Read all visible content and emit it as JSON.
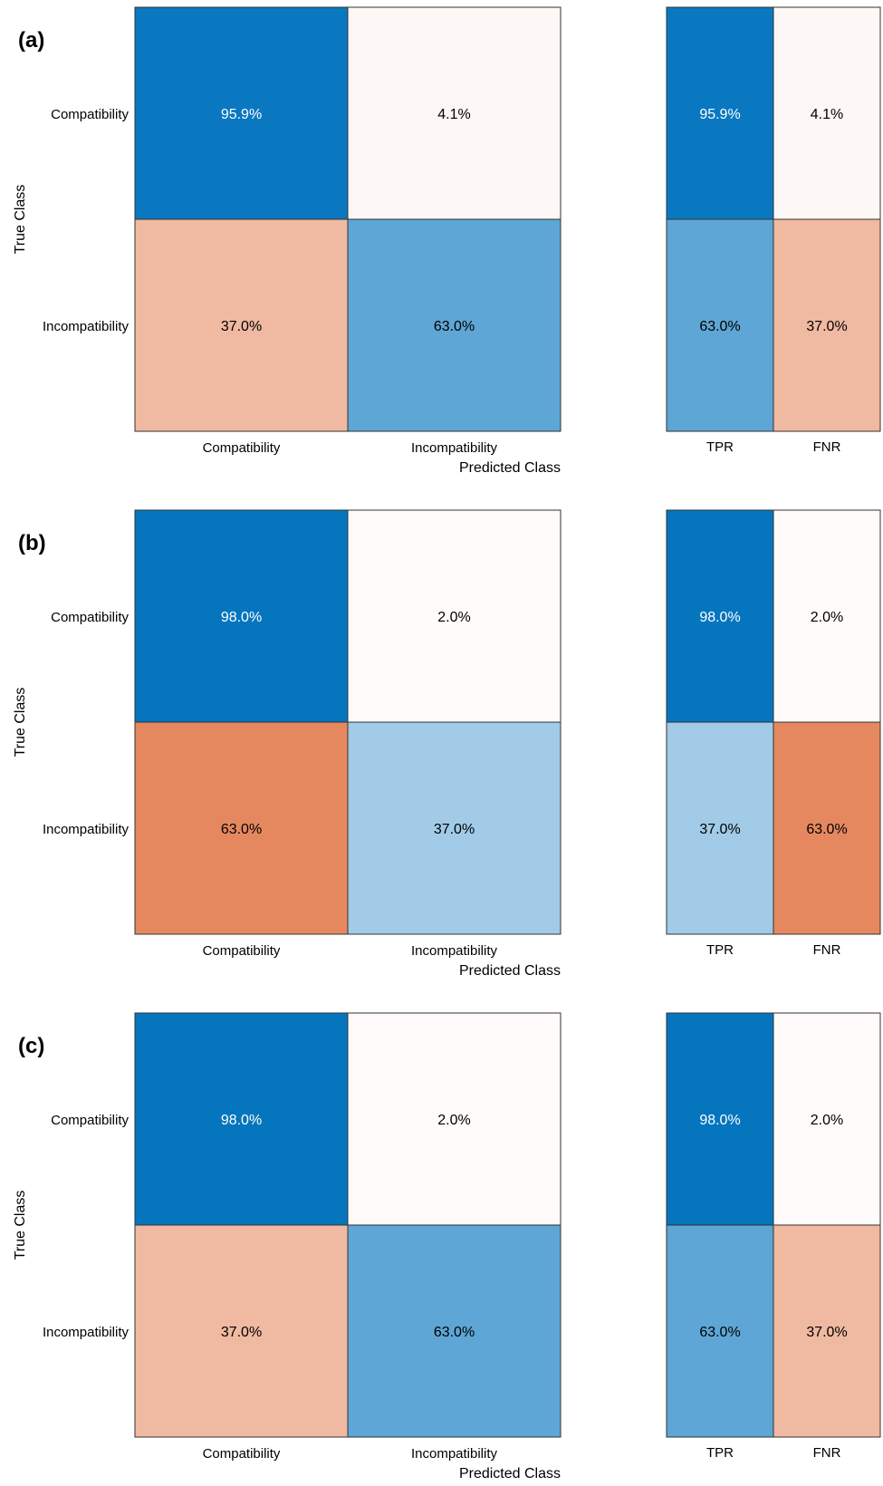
{
  "chart_data": [
    {
      "type": "heatmap",
      "panel_label": "(a)",
      "ylabel": "True Class",
      "xlabel": "Predicted Class",
      "rows": [
        "Compatibility",
        "Incompatibility"
      ],
      "cols": [
        "Compatibility",
        "Incompatibility"
      ],
      "values": [
        [
          95.9,
          4.1
        ],
        [
          37.0,
          63.0
        ]
      ],
      "cell_labels": [
        [
          "95.9%",
          "4.1%"
        ],
        [
          "37.0%",
          "63.0%"
        ]
      ],
      "summary_cols": [
        "TPR",
        "FNR"
      ],
      "summary_values": [
        [
          95.9,
          4.1
        ],
        [
          63.0,
          37.0
        ]
      ],
      "summary_labels": [
        [
          "95.9%",
          "4.1%"
        ],
        [
          "63.0%",
          "37.0%"
        ]
      ]
    },
    {
      "type": "heatmap",
      "panel_label": "(b)",
      "ylabel": "True Class",
      "xlabel": "Predicted Class",
      "rows": [
        "Compatibility",
        "Incompatibility"
      ],
      "cols": [
        "Compatibility",
        "Incompatibility"
      ],
      "values": [
        [
          98.0,
          2.0
        ],
        [
          63.0,
          37.0
        ]
      ],
      "cell_labels": [
        [
          "98.0%",
          "2.0%"
        ],
        [
          "63.0%",
          "37.0%"
        ]
      ],
      "summary_cols": [
        "TPR",
        "FNR"
      ],
      "summary_values": [
        [
          98.0,
          2.0
        ],
        [
          37.0,
          63.0
        ]
      ],
      "summary_labels": [
        [
          "98.0%",
          "2.0%"
        ],
        [
          "37.0%",
          "63.0%"
        ]
      ]
    },
    {
      "type": "heatmap",
      "panel_label": "(c)",
      "ylabel": "True Class",
      "xlabel": "Predicted Class",
      "rows": [
        "Compatibility",
        "Incompatibility"
      ],
      "cols": [
        "Compatibility",
        "Incompatibility"
      ],
      "values": [
        [
          98.0,
          2.0
        ],
        [
          37.0,
          63.0
        ]
      ],
      "cell_labels": [
        [
          "98.0%",
          "2.0%"
        ],
        [
          "37.0%",
          "63.0%"
        ]
      ],
      "summary_cols": [
        "TPR",
        "FNR"
      ],
      "summary_values": [
        [
          98.0,
          2.0
        ],
        [
          63.0,
          37.0
        ]
      ],
      "summary_labels": [
        [
          "98.0%",
          "2.0%"
        ],
        [
          "63.0%",
          "37.0%"
        ]
      ]
    }
  ],
  "colors": {
    "correct_scale": [
      "#ffffff",
      "#0072bd"
    ],
    "error_scale": [
      "#ffffff",
      "#d95319"
    ],
    "grid": "#333333",
    "text_dark": "#000000",
    "text_light": "#ffffff"
  }
}
